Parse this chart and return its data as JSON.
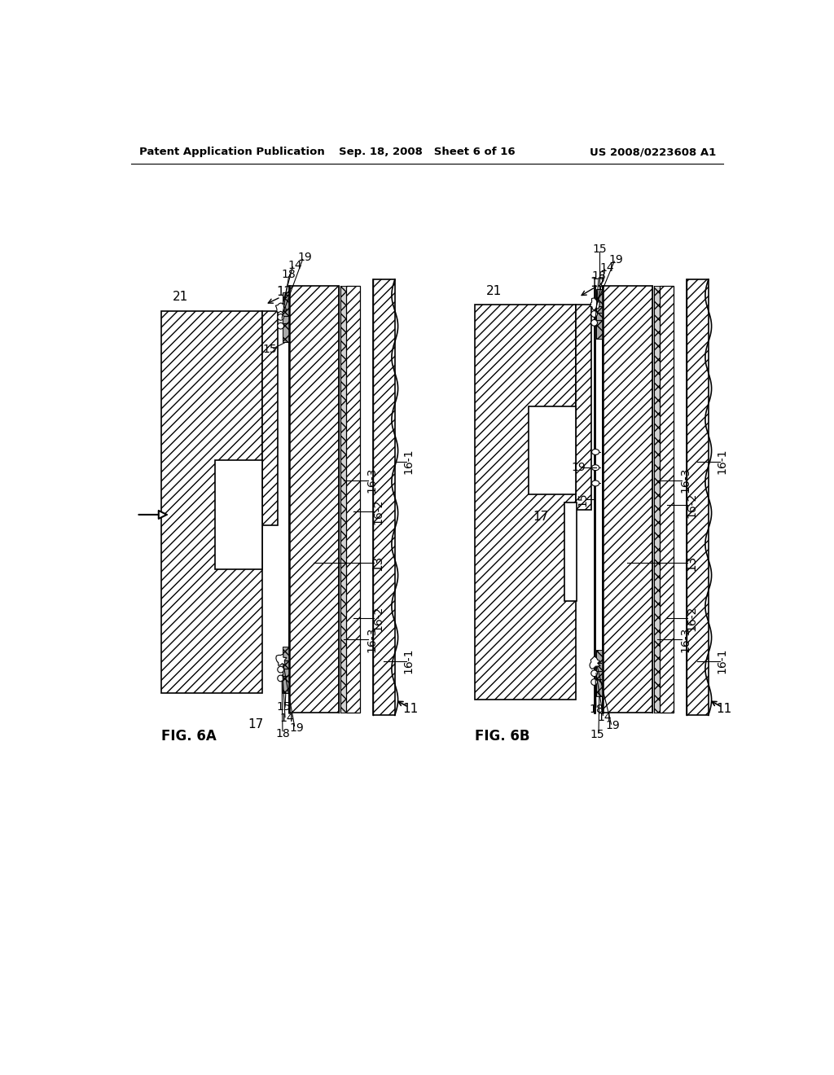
{
  "background_color": "#ffffff",
  "header_left": "Patent Application Publication",
  "header_mid": "Sep. 18, 2008   Sheet 6 of 16",
  "header_right": "US 2008/0223608 A1",
  "fig6a_label": "FIG. 6A",
  "fig6b_label": "FIG. 6B"
}
